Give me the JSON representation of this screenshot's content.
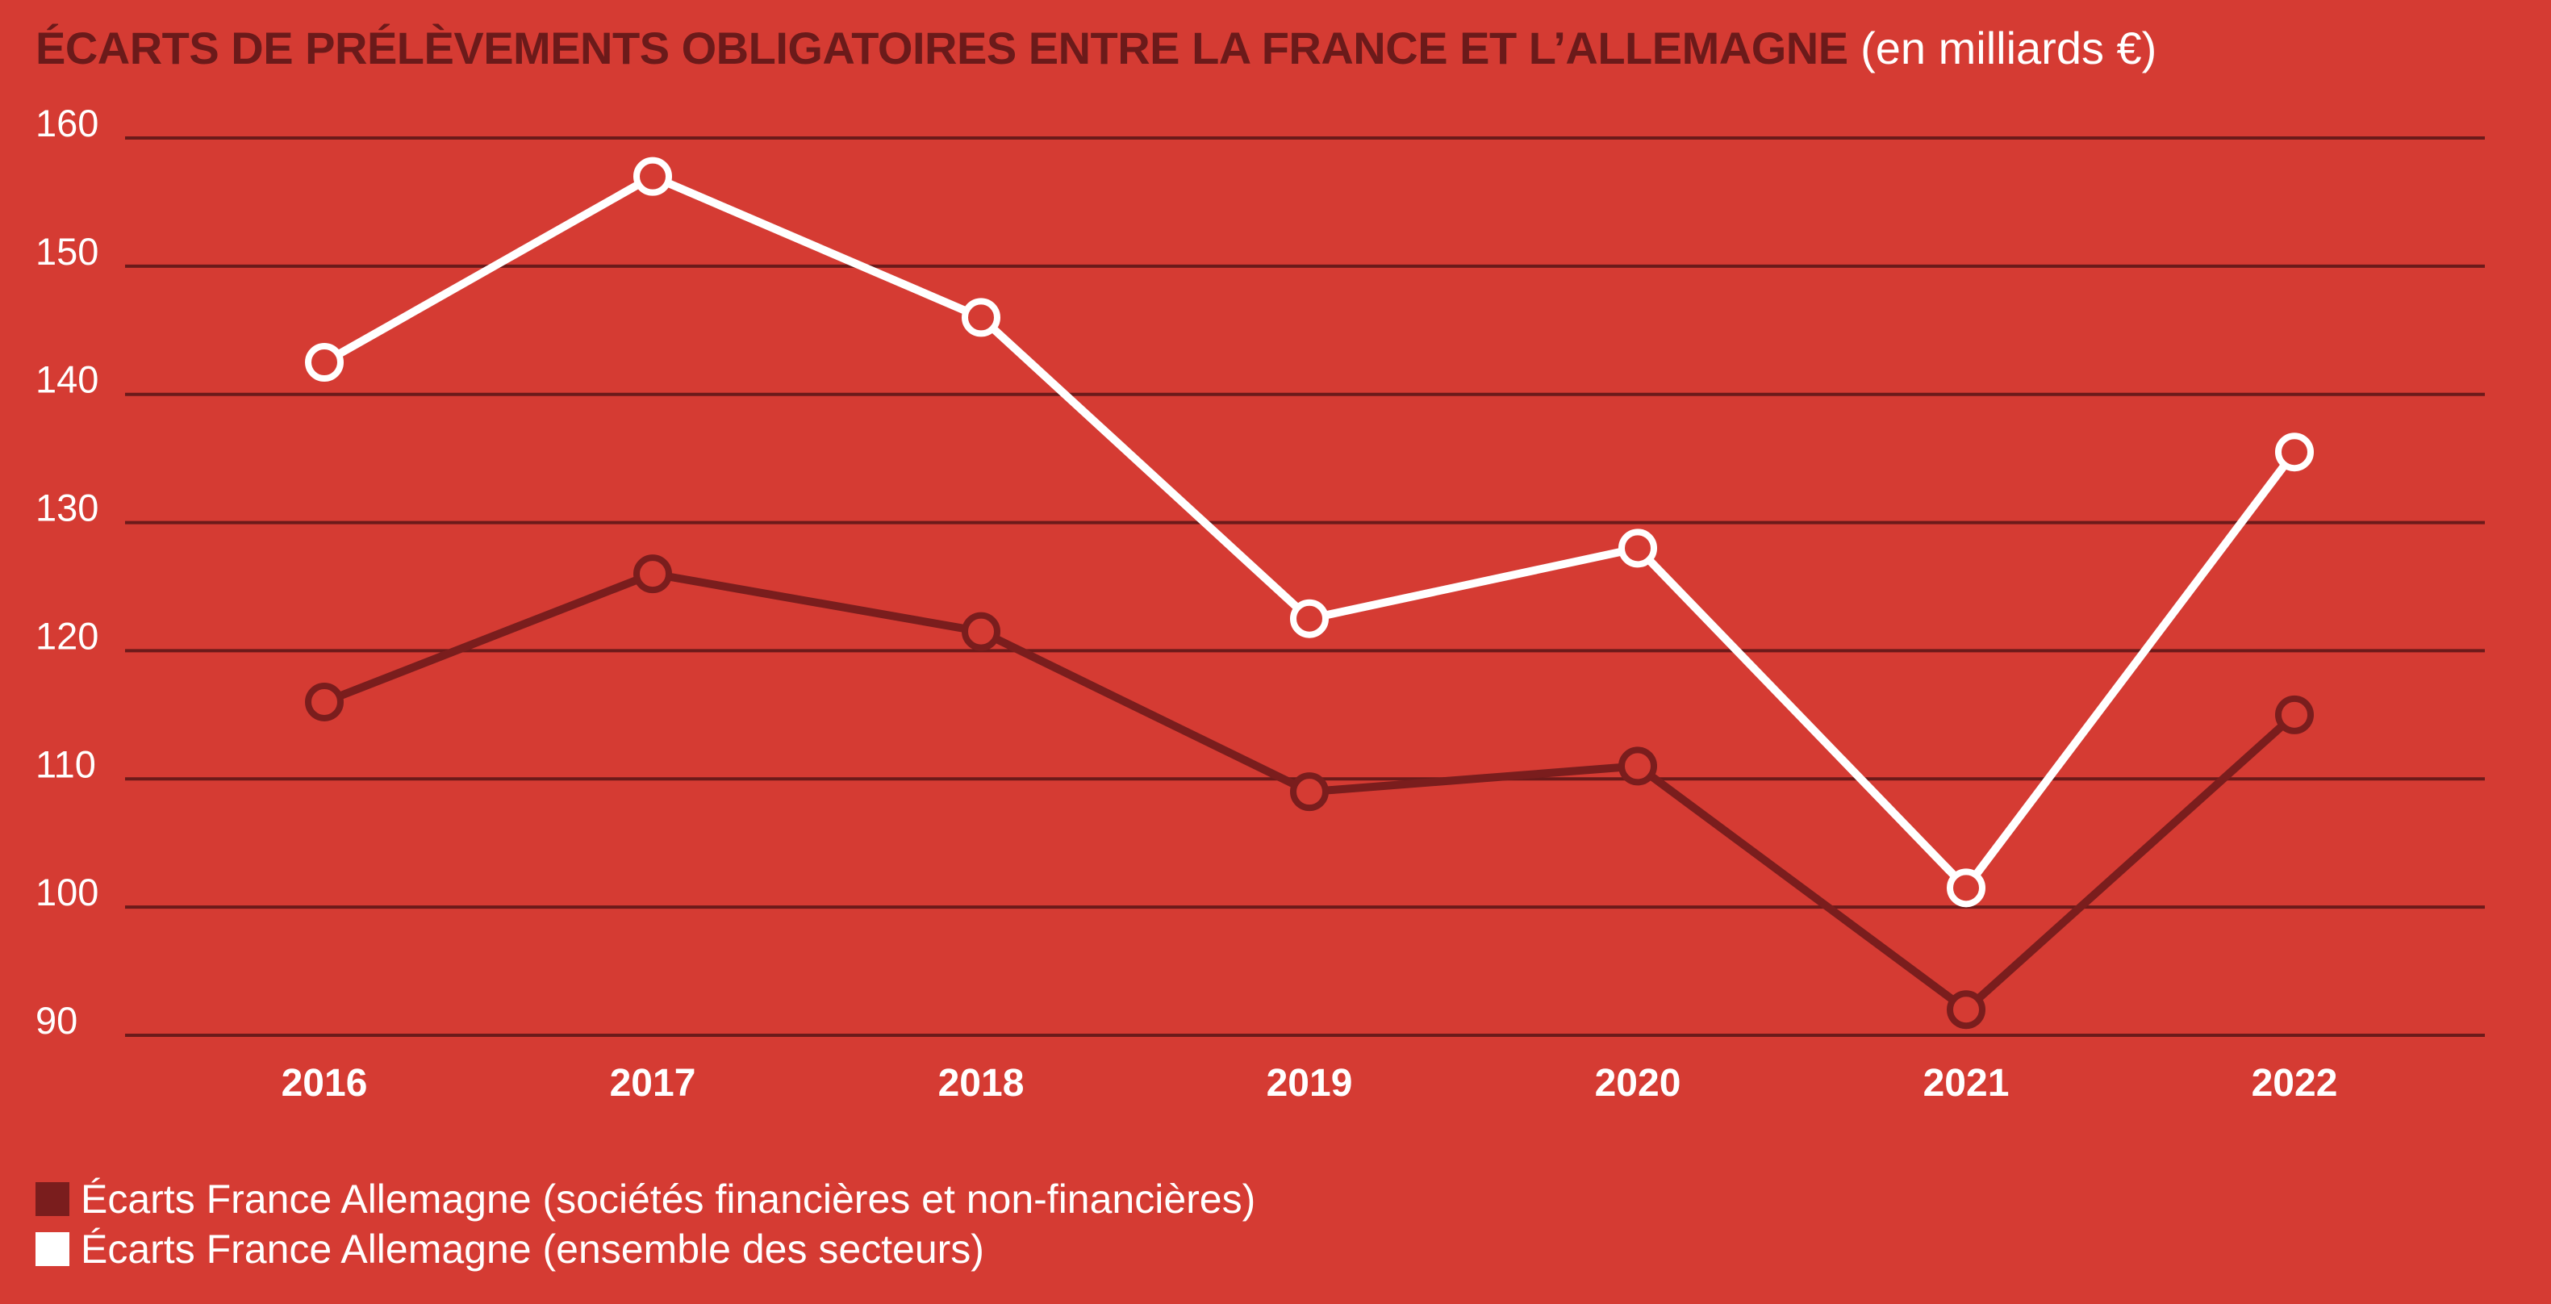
{
  "title": {
    "main": "ÉCARTS DE PRÉLÈVEMENTS OBLIGATOIRES ENTRE LA FRANCE ET L’ALLEMAGNE",
    "unit": "(en milliards €)"
  },
  "colors": {
    "background": "#d53b33",
    "title": "#6b1a1a",
    "grid": "#6b1a1a",
    "series_dark": "#7a1d1d",
    "series_light": "#ffffff"
  },
  "chart_data": {
    "type": "line",
    "x": [
      "2016",
      "2017",
      "2018",
      "2019",
      "2020",
      "2021",
      "2022"
    ],
    "ylim": [
      90,
      160
    ],
    "yticks": [
      "160",
      "150",
      "140",
      "130",
      "120",
      "110",
      "100",
      "90"
    ],
    "grid": true,
    "legend_position": "bottom-left",
    "xlabel": "",
    "ylabel": "",
    "series": [
      {
        "name": "Écarts France Allemagne (sociétés financières et non-financières)",
        "color": "#7a1d1d",
        "values": [
          116,
          126,
          121.5,
          109,
          111,
          92,
          115
        ]
      },
      {
        "name": "Écarts France Allemagne (ensemble des secteurs)",
        "color": "#ffffff",
        "values": [
          142.5,
          157,
          146,
          122.5,
          128,
          101.5,
          135.5
        ]
      }
    ]
  }
}
